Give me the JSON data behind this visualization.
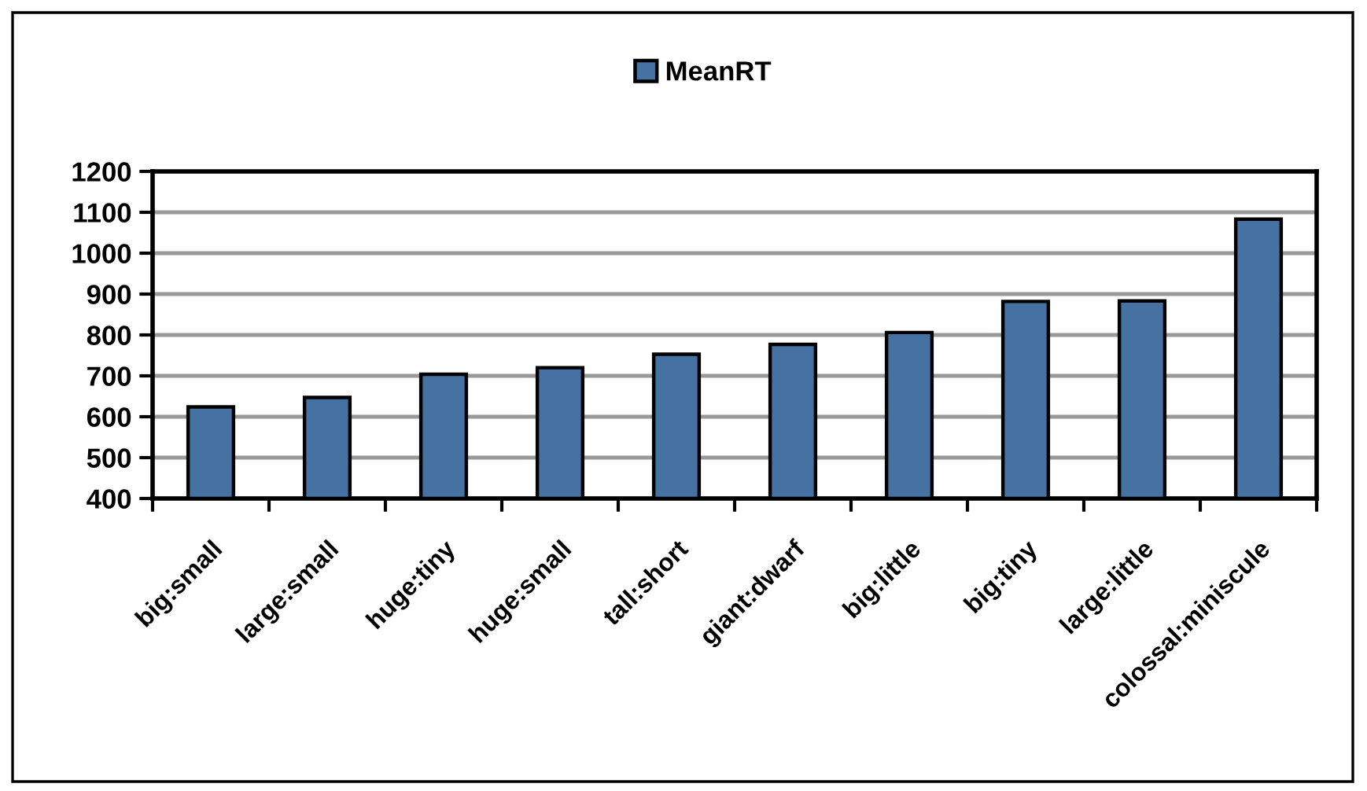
{
  "chart_data": {
    "type": "bar",
    "categories": [
      "big:small",
      "large:small",
      "huge:tiny",
      "huge:small",
      "tall:short",
      "giant:dwarf",
      "big:little",
      "big:tiny",
      "large:little",
      "colossal:miniscule"
    ],
    "series": [
      {
        "name": "MeanRT",
        "color": "#4672a3",
        "values": [
          624,
          647,
          704,
          720,
          753,
          777,
          806,
          882,
          883,
          1083
        ]
      }
    ],
    "ylim": [
      400,
      1200
    ],
    "yticks": [
      400,
      500,
      600,
      700,
      800,
      900,
      1000,
      1100,
      1200
    ],
    "grid": "y",
    "legend": "top"
  }
}
